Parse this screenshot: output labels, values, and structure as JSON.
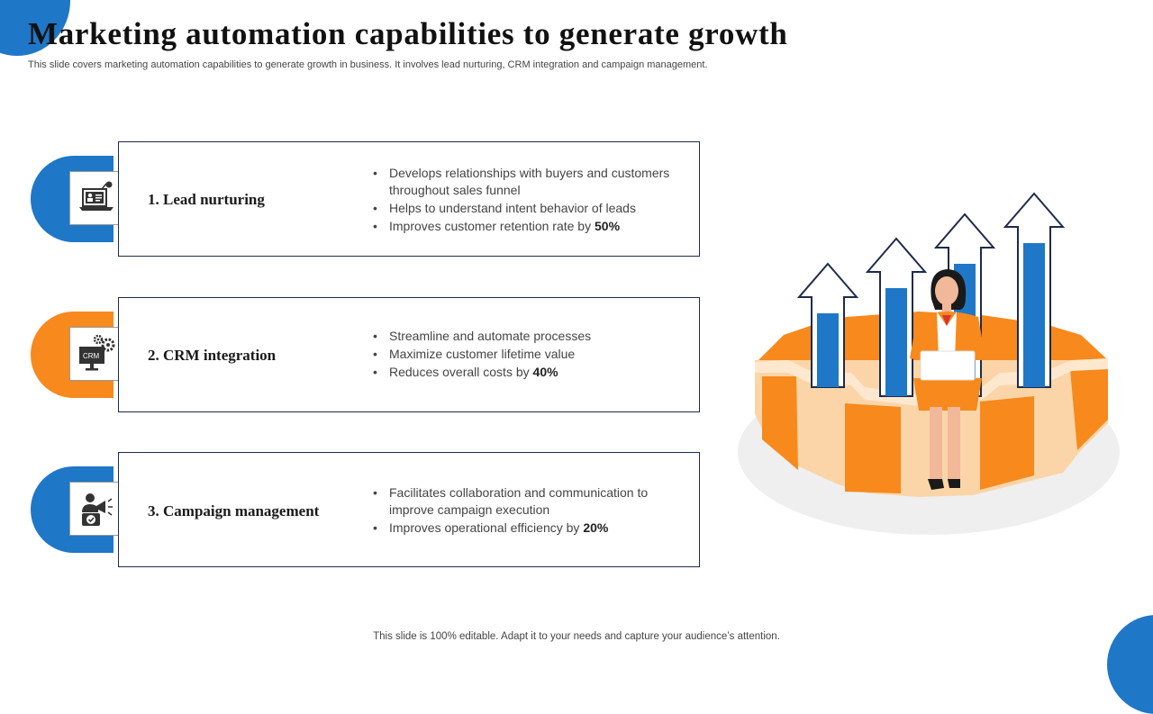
{
  "page": {
    "title": "Marketing automation capabilities to generate growth",
    "subtitle": "This slide covers marketing automation capabilities to generate growth in business. It involves lead nurturing, CRM integration and campaign management.",
    "footer": "This slide is 100% editable. Adapt it to your needs and capture your audience’s attention."
  },
  "colors": {
    "blue": "#1f77c8",
    "orange": "#f7891d",
    "dark_navy": "#1d2b4a",
    "light_orange": "#fbd5a8"
  },
  "cards": [
    {
      "label": "1. Lead nurturing",
      "accent": "blue",
      "icon": "laptop-analytics-icon",
      "bullets": [
        {
          "text": "Develops relationships with buyers and customers throughout sales funnel",
          "bold": ""
        },
        {
          "text": "Helps to understand intent behavior of leads",
          "bold": ""
        },
        {
          "text": "Improves customer retention rate by ",
          "bold": "50%"
        }
      ]
    },
    {
      "label": "2. CRM integration",
      "accent": "orange",
      "icon": "crm-monitor-gears-icon",
      "icon_text": "CRM",
      "bullets": [
        {
          "text": "Streamline and automate processes",
          "bold": ""
        },
        {
          "text": "Maximize customer lifetime value",
          "bold": ""
        },
        {
          "text": "Reduces overall costs by ",
          "bold": "40%"
        }
      ]
    },
    {
      "label": "3. Campaign management",
      "accent": "blue",
      "icon": "campaign-megaphone-icon",
      "bullets": [
        {
          "text": "Facilitates collaboration and communication to improve campaign execution",
          "bold": ""
        },
        {
          "text": "Improves operational efficiency by ",
          "bold": "20%"
        }
      ]
    }
  ],
  "illustration": {
    "name": "woman-on-gear-growth-arrows-illustration"
  }
}
